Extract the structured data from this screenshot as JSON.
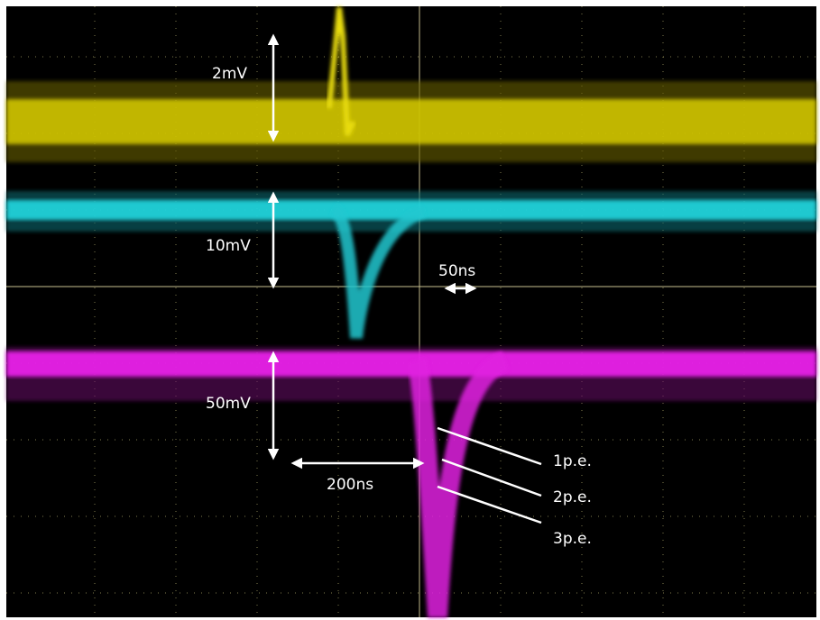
{
  "scale_labels": [
    "2mV",
    "10mV",
    "50mV"
  ],
  "time_labels": [
    "50ns",
    "200ns"
  ],
  "pe_labels": [
    "1p.e.",
    "2p.e.",
    "3p.e."
  ]
}
